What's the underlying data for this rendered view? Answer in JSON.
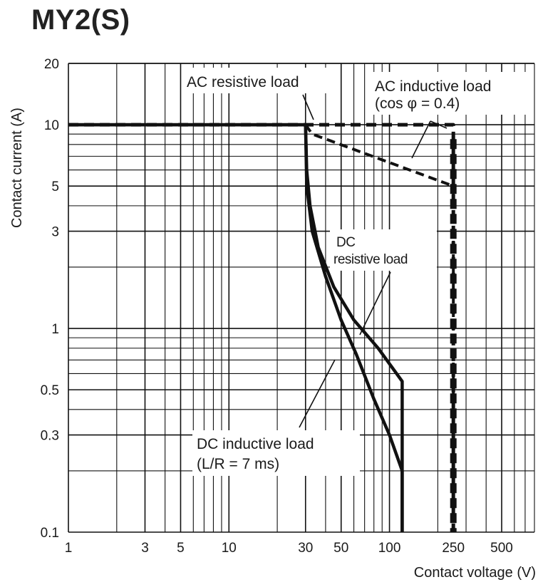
{
  "title": "MY2(S)",
  "chart_data": {
    "type": "line",
    "title": "MY2(S)",
    "xlabel": "Contact voltage (V)",
    "ylabel": "Contact current (A)",
    "x_scale": "log",
    "y_scale": "log",
    "xlim": [
      1,
      800
    ],
    "ylim": [
      0.1,
      20
    ],
    "x_ticks": [
      "1",
      "3",
      "5",
      "10",
      "30",
      "50",
      "100",
      "250",
      "500"
    ],
    "x_tick_values": [
      1,
      3,
      5,
      10,
      30,
      50,
      100,
      250,
      500
    ],
    "y_ticks": [
      "20",
      "10",
      "5",
      "3",
      "1",
      "0.5",
      "0.3",
      "0.1"
    ],
    "y_tick_values": [
      20,
      10,
      5,
      3,
      1,
      0.5,
      0.3,
      0.1
    ],
    "grid": true,
    "series": [
      {
        "name": "AC resistive load",
        "style": "dashed",
        "points": [
          [
            1,
            10
          ],
          [
            30,
            10
          ],
          [
            75,
            10
          ],
          [
            250,
            10
          ],
          [
            250,
            0.1
          ]
        ]
      },
      {
        "name": "AC inductive load (cos φ = 0.4)",
        "style": "dashed",
        "points": [
          [
            30,
            10
          ],
          [
            33,
            9
          ],
          [
            250,
            5
          ],
          [
            250,
            0.1
          ]
        ]
      },
      {
        "name": "DC resistive load",
        "style": "solid",
        "points": [
          [
            1,
            10
          ],
          [
            30,
            10
          ],
          [
            30.5,
            6
          ],
          [
            32,
            4
          ],
          [
            36,
            2.5
          ],
          [
            45,
            1.6
          ],
          [
            60,
            1.1
          ],
          [
            85,
            0.8
          ],
          [
            120,
            0.55
          ],
          [
            120,
            0.1
          ]
        ]
      },
      {
        "name": "DC inductive load (L/R = 7 ms)",
        "style": "solid",
        "points": [
          [
            1,
            10
          ],
          [
            30,
            10
          ],
          [
            30.5,
            5
          ],
          [
            33,
            3
          ],
          [
            40,
            1.8
          ],
          [
            50,
            1.1
          ],
          [
            62,
            0.75
          ],
          [
            80,
            0.45
          ],
          [
            100,
            0.3
          ],
          [
            120,
            0.2
          ],
          [
            120,
            0.1
          ]
        ]
      }
    ],
    "annotations": [
      {
        "text": "AC resistive load"
      },
      {
        "text": "AC inductive load"
      },
      {
        "text": "(cos φ = 0.4)"
      },
      {
        "text": "DC"
      },
      {
        "text": "resistive load"
      },
      {
        "text": "DC inductive load"
      },
      {
        "text": "(L/R = 7 ms)"
      }
    ]
  }
}
